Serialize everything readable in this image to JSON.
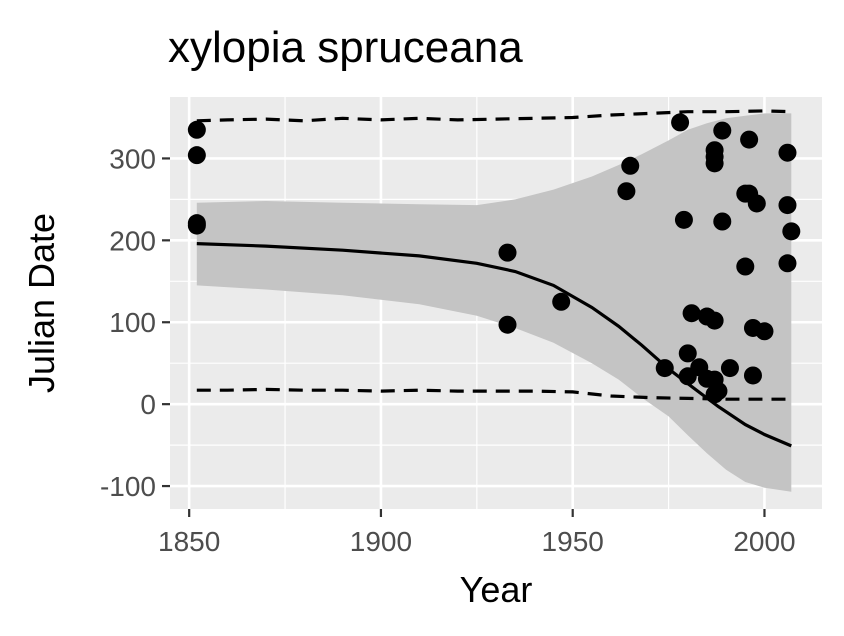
{
  "chart_data": {
    "type": "scatter",
    "title": "xylopia spruceana",
    "xlabel": "Year",
    "ylabel": "Julian Date",
    "xlim": [
      1845,
      2015
    ],
    "ylim": [
      -128,
      375
    ],
    "x_ticks": [
      1850,
      1900,
      1950,
      2000
    ],
    "y_ticks": [
      -100,
      0,
      100,
      200,
      300
    ],
    "x_tick_labels": [
      "1850",
      "1900",
      "1950",
      "2000"
    ],
    "y_tick_labels": [
      "-100",
      "0",
      "100",
      "200",
      "300"
    ],
    "grid": true,
    "legend": "none",
    "colors": {
      "panel": "#ebebeb",
      "grid": "#ffffff",
      "points": "#000000",
      "ribbon": "#c4c4c4",
      "line": "#000000"
    },
    "points": [
      {
        "x": 1852,
        "y": 335
      },
      {
        "x": 1852,
        "y": 304
      },
      {
        "x": 1852,
        "y": 221
      },
      {
        "x": 1852,
        "y": 218
      },
      {
        "x": 1933,
        "y": 185
      },
      {
        "x": 1933,
        "y": 97
      },
      {
        "x": 1947,
        "y": 125
      },
      {
        "x": 1964,
        "y": 260
      },
      {
        "x": 1965,
        "y": 291
      },
      {
        "x": 1974,
        "y": 44
      },
      {
        "x": 1978,
        "y": 344
      },
      {
        "x": 1979,
        "y": 225
      },
      {
        "x": 1980,
        "y": 62
      },
      {
        "x": 1980,
        "y": 34
      },
      {
        "x": 1981,
        "y": 111
      },
      {
        "x": 1983,
        "y": 45
      },
      {
        "x": 1985,
        "y": 107
      },
      {
        "x": 1985,
        "y": 31
      },
      {
        "x": 1987,
        "y": 310
      },
      {
        "x": 1987,
        "y": 302
      },
      {
        "x": 1987,
        "y": 294
      },
      {
        "x": 1987,
        "y": 102
      },
      {
        "x": 1987,
        "y": 30
      },
      {
        "x": 1987,
        "y": 12
      },
      {
        "x": 1988,
        "y": 16
      },
      {
        "x": 1989,
        "y": 334
      },
      {
        "x": 1989,
        "y": 223
      },
      {
        "x": 1991,
        "y": 44
      },
      {
        "x": 1995,
        "y": 257
      },
      {
        "x": 1995,
        "y": 168
      },
      {
        "x": 1996,
        "y": 323
      },
      {
        "x": 1996,
        "y": 257
      },
      {
        "x": 1997,
        "y": 93
      },
      {
        "x": 1997,
        "y": 35
      },
      {
        "x": 1998,
        "y": 245
      },
      {
        "x": 2000,
        "y": 89
      },
      {
        "x": 2006,
        "y": 307
      },
      {
        "x": 2006,
        "y": 243
      },
      {
        "x": 2006,
        "y": 172
      },
      {
        "x": 2007,
        "y": 211
      }
    ],
    "fit_line": {
      "x": [
        1852,
        1870,
        1890,
        1910,
        1925,
        1935,
        1945,
        1955,
        1962,
        1968,
        1975,
        1982,
        1988,
        1995,
        2000,
        2007
      ],
      "y": [
        196,
        193,
        188,
        181,
        172,
        162,
        145,
        118,
        95,
        72,
        43,
        18,
        -3,
        -25,
        -37,
        -51
      ]
    },
    "ribbon": {
      "x": [
        1852,
        1870,
        1890,
        1910,
        1925,
        1935,
        1945,
        1955,
        1962,
        1968,
        1975,
        1980,
        1985,
        1990,
        1995,
        2000,
        2007
      ],
      "upper": [
        246,
        248,
        246,
        244,
        243,
        250,
        262,
        278,
        292,
        305,
        322,
        335,
        343,
        349,
        352,
        355,
        355
      ],
      "lower": [
        145,
        140,
        133,
        122,
        108,
        93,
        75,
        50,
        30,
        8,
        -15,
        -38,
        -60,
        -80,
        -95,
        -102,
        -107
      ]
    },
    "upper_dashed": {
      "x": [
        1852,
        1860,
        1870,
        1880,
        1890,
        1900,
        1910,
        1920,
        1930,
        1940,
        1950,
        1960,
        1970,
        1980,
        1990,
        2000,
        2007
      ],
      "y": [
        346,
        347,
        348,
        346,
        349,
        347,
        349,
        347,
        348,
        349,
        350,
        353,
        355,
        357,
        357,
        358,
        357
      ]
    },
    "lower_dashed": {
      "x": [
        1852,
        1860,
        1870,
        1880,
        1890,
        1900,
        1910,
        1920,
        1930,
        1940,
        1950,
        1960,
        1970,
        1980,
        1990,
        2000,
        2007
      ],
      "y": [
        17,
        17,
        18,
        17,
        17,
        16,
        17,
        16,
        16,
        16,
        15,
        10,
        8,
        7,
        6,
        6,
        6
      ]
    }
  }
}
